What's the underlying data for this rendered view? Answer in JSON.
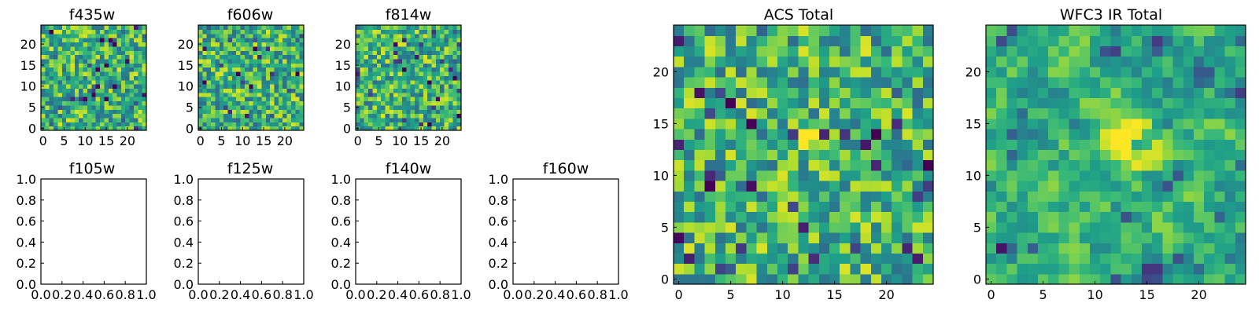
{
  "chart_data": [
    {
      "type": "heatmap",
      "title": "f435w",
      "xticks": [
        "0",
        "5",
        "10",
        "15",
        "20"
      ],
      "yticks": [
        "0",
        "5",
        "10",
        "15",
        "20"
      ],
      "xlim": [
        -0.5,
        24.5
      ],
      "ylim": [
        -0.5,
        24.5
      ],
      "grid": 25,
      "seed": 11,
      "colormap": "viridis",
      "smooth": 0,
      "blobs": []
    },
    {
      "type": "heatmap",
      "title": "f606w",
      "xticks": [
        "0",
        "5",
        "10",
        "15",
        "20"
      ],
      "yticks": [
        "0",
        "5",
        "10",
        "15",
        "20"
      ],
      "xlim": [
        -0.5,
        24.5
      ],
      "ylim": [
        -0.5,
        24.5
      ],
      "grid": 25,
      "seed": 23,
      "colormap": "viridis",
      "smooth": 0,
      "blobs": []
    },
    {
      "type": "heatmap",
      "title": "f814w",
      "xticks": [
        "0",
        "5",
        "10",
        "15",
        "20"
      ],
      "yticks": [
        "0",
        "5",
        "10",
        "15",
        "20"
      ],
      "xlim": [
        -0.5,
        24.5
      ],
      "ylim": [
        -0.5,
        24.5
      ],
      "grid": 25,
      "seed": 37,
      "colormap": "viridis",
      "smooth": 0,
      "blobs": []
    },
    {
      "type": "empty",
      "title": "f105w",
      "xticks": [
        "0.0",
        "0.2",
        "0.4",
        "0.6",
        "0.8",
        "1.0"
      ],
      "yticks": [
        "0.0",
        "0.2",
        "0.4",
        "0.6",
        "0.8",
        "1.0"
      ],
      "xlim": [
        0,
        1
      ],
      "ylim": [
        0,
        1
      ]
    },
    {
      "type": "empty",
      "title": "f125w",
      "xticks": [
        "0.0",
        "0.2",
        "0.4",
        "0.6",
        "0.8",
        "1.0"
      ],
      "yticks": [
        "0.0",
        "0.2",
        "0.4",
        "0.6",
        "0.8",
        "1.0"
      ],
      "xlim": [
        0,
        1
      ],
      "ylim": [
        0,
        1
      ]
    },
    {
      "type": "empty",
      "title": "f140w",
      "xticks": [
        "0.0",
        "0.2",
        "0.4",
        "0.6",
        "0.8",
        "1.0"
      ],
      "yticks": [
        "0.0",
        "0.2",
        "0.4",
        "0.6",
        "0.8",
        "1.0"
      ],
      "xlim": [
        0,
        1
      ],
      "ylim": [
        0,
        1
      ]
    },
    {
      "type": "empty",
      "title": "f160w",
      "xticks": [
        "0.0",
        "0.2",
        "0.4",
        "0.6",
        "0.8",
        "1.0"
      ],
      "yticks": [
        "0.0",
        "0.2",
        "0.4",
        "0.6",
        "0.8",
        "1.0"
      ],
      "xlim": [
        0,
        1
      ],
      "ylim": [
        0,
        1
      ]
    },
    {
      "type": "heatmap",
      "title": "ACS Total",
      "xticks": [
        "0",
        "5",
        "10",
        "15",
        "20"
      ],
      "yticks": [
        "0",
        "5",
        "10",
        "15",
        "20"
      ],
      "xlim": [
        -0.5,
        24.5
      ],
      "ylim": [
        -0.5,
        24.5
      ],
      "grid": 25,
      "seed": 53,
      "colormap": "viridis",
      "smooth": 0,
      "blobs": [
        {
          "x": 12.5,
          "y": 13.5,
          "amp": 0.35,
          "sigma": 1.1
        }
      ]
    },
    {
      "type": "heatmap",
      "title": "WFC3 IR Total",
      "xticks": [
        "0",
        "5",
        "10",
        "15",
        "20"
      ],
      "yticks": [
        "0",
        "5",
        "10",
        "15",
        "20"
      ],
      "xlim": [
        -0.5,
        24.5
      ],
      "ylim": [
        -0.5,
        24.5
      ],
      "grid": 25,
      "seed": 71,
      "colormap": "viridis",
      "smooth": 1,
      "blobs": [
        {
          "x": 12.5,
          "y": 13.5,
          "amp": 0.45,
          "sigma": 2.0
        },
        {
          "x": 15.5,
          "y": 1.0,
          "amp": -0.55,
          "sigma": 0.9
        },
        {
          "x": 1.5,
          "y": 3.0,
          "amp": -0.5,
          "sigma": 0.8
        },
        {
          "x": 16.5,
          "y": 23.0,
          "amp": -0.5,
          "sigma": 0.8
        },
        {
          "x": 20.5,
          "y": 20.0,
          "amp": -0.3,
          "sigma": 1.2
        }
      ]
    }
  ]
}
